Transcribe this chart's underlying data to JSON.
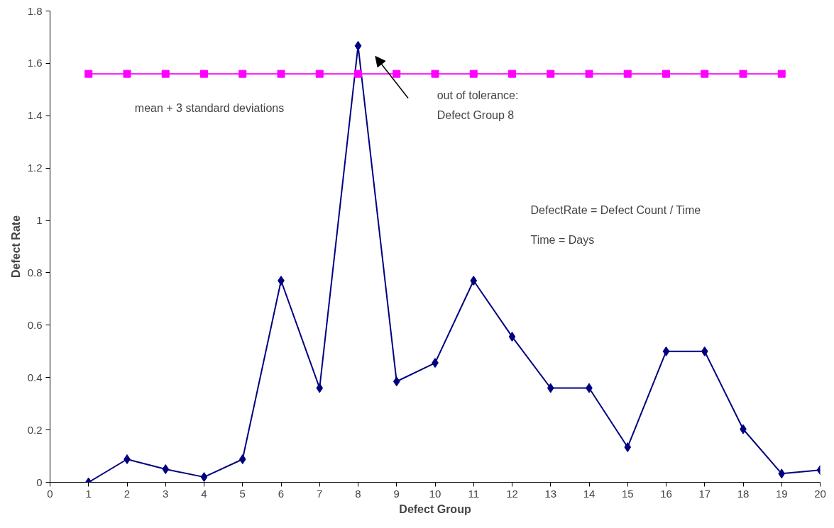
{
  "chart_data": {
    "type": "line",
    "xlabel": "Defect Group",
    "ylabel": "Defect Rate",
    "x": [
      1,
      2,
      3,
      4,
      5,
      6,
      7,
      8,
      9,
      10,
      11,
      12,
      13,
      14,
      15,
      16,
      17,
      18,
      19,
      20
    ],
    "series": [
      {
        "color": "#000080",
        "marker": "diamond",
        "values": [
          0,
          0.088,
          0.05,
          0.02,
          0.088,
          0.77,
          0.36,
          1.667,
          0.385,
          0.456,
          0.77,
          0.556,
          0.36,
          0.36,
          0.134,
          0.5,
          0.5,
          0.203,
          0.033,
          0.047
        ]
      },
      {
        "color": "#ff00ff",
        "marker": "square",
        "x": [
          1,
          2,
          3,
          4,
          5,
          6,
          7,
          8,
          9,
          10,
          11,
          12,
          13,
          14,
          15,
          16,
          17,
          18,
          19
        ],
        "values": [
          1.56,
          1.56,
          1.56,
          1.56,
          1.56,
          1.56,
          1.56,
          1.56,
          1.56,
          1.56,
          1.56,
          1.56,
          1.56,
          1.56,
          1.56,
          1.56,
          1.56,
          1.56,
          1.56
        ]
      }
    ],
    "xlim": [
      0,
      20
    ],
    "xticks": [
      0,
      1,
      2,
      3,
      4,
      5,
      6,
      7,
      8,
      9,
      10,
      11,
      12,
      13,
      14,
      15,
      16,
      17,
      18,
      19,
      20
    ],
    "ylim": [
      0,
      1.8
    ],
    "yticks": [
      0,
      0.2,
      0.4,
      0.6,
      0.8,
      1,
      1.2,
      1.4,
      1.6,
      1.8
    ],
    "grid": false,
    "annotations": [
      "mean + 3 standard deviations",
      "out of tolerance: Defect Group 8",
      "DefectRate = Defect Count / Time",
      "Time = Days"
    ]
  }
}
